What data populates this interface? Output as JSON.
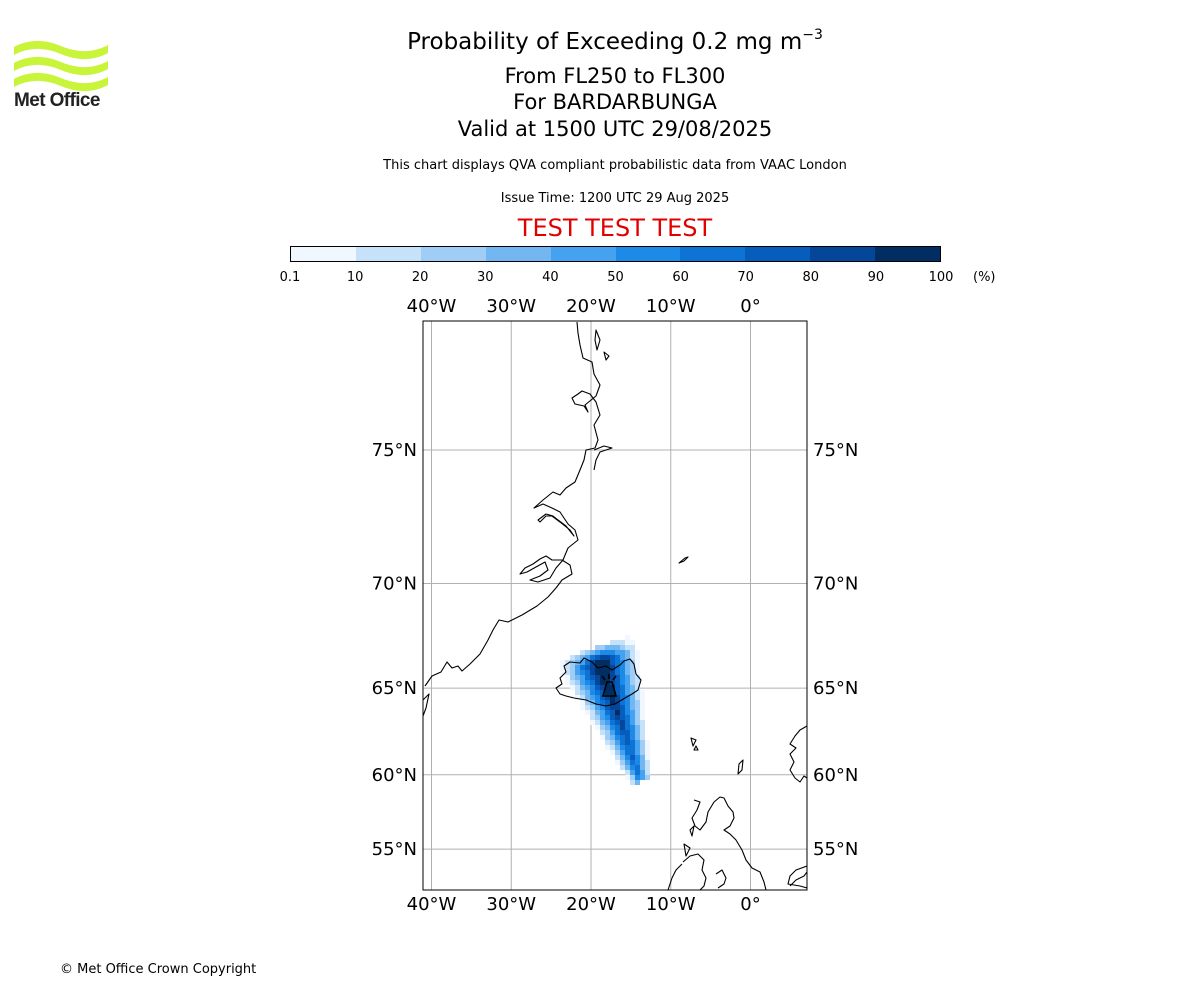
{
  "logo": {
    "text": "Met Office",
    "color": "#c8f53a"
  },
  "header": {
    "title_main": "Probability of Exceeding 0.2 mg m",
    "title_sup": "−3",
    "level_range": "From FL250 to FL300",
    "volcano": "For BARDARBUNGA",
    "valid_time": "Valid at 1500 UTC 29/08/2025",
    "description": "This chart displays QVA compliant probabilistic data from VAAC London",
    "issue_time": "Issue Time: 1200 UTC 29 Aug 2025",
    "test_banner": "TEST TEST TEST"
  },
  "colorbar": {
    "ticks": [
      "0.1",
      "10",
      "20",
      "30",
      "40",
      "50",
      "60",
      "70",
      "80",
      "90",
      "100"
    ],
    "unit": "(%)",
    "colors": [
      "#f0f7ff",
      "#c6e2fa",
      "#9fcdf6",
      "#72b6f2",
      "#45a2f1",
      "#1e8ae8",
      "#0d74d6",
      "#065dbb",
      "#04479a",
      "#022d62"
    ]
  },
  "map": {
    "lon_labels": [
      "40°W",
      "30°W",
      "20°W",
      "10°W",
      "0°"
    ],
    "lat_labels": [
      "75°N",
      "70°N",
      "65°N",
      "60°N",
      "55°N"
    ],
    "lon_values": [
      -40,
      -30,
      -20,
      -10,
      0
    ],
    "lat_values": [
      75,
      70,
      65,
      60,
      55
    ],
    "volcano_name": "BARDARBUNGA",
    "volcano_lon": -17.5,
    "volcano_lat": 64.6
  },
  "footer": {
    "copyright": "© Met Office Crown Copyright"
  }
}
